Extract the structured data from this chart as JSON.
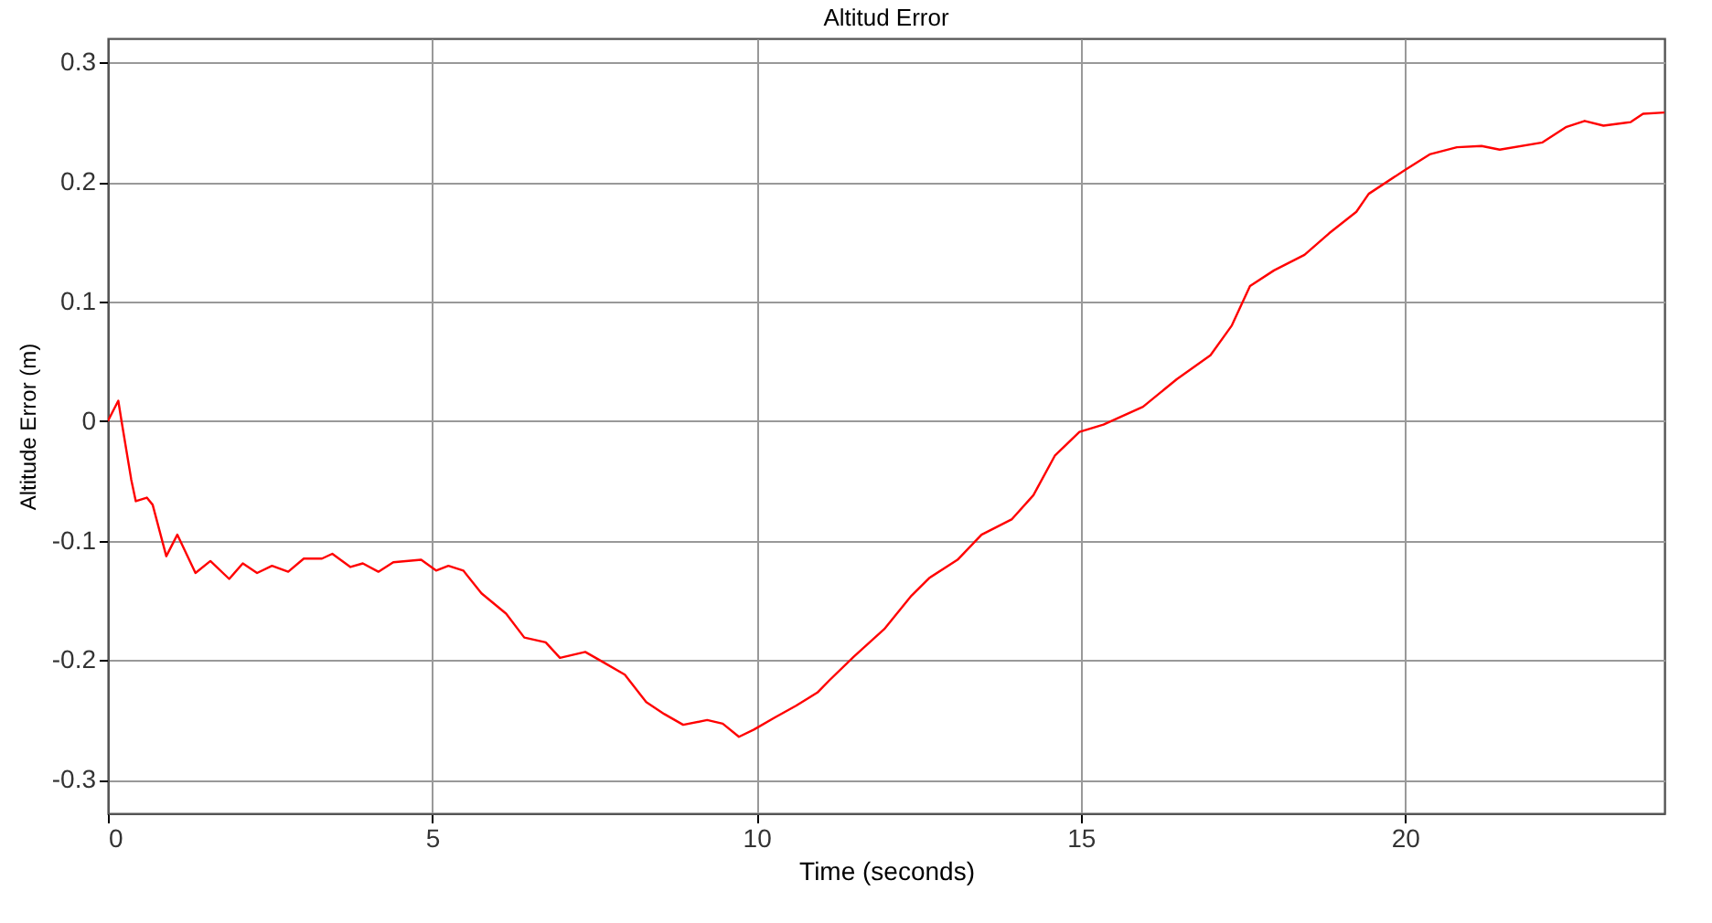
{
  "chart_data": {
    "type": "line",
    "title": "Altitud Error",
    "xlabel": "Time (seconds)",
    "ylabel": "Altitude Error (m)",
    "xlim": [
      0,
      24
    ],
    "ylim": [
      -0.328,
      0.32
    ],
    "xticks": [
      0,
      5,
      10,
      15,
      20
    ],
    "yticks": [
      -0.3,
      -0.2,
      -0.1,
      0,
      0.1,
      0.2,
      0.3
    ],
    "grid": true,
    "x": [
      0,
      0.16,
      0.21,
      0.36,
      0.43,
      0.6,
      0.69,
      0.9,
      1.07,
      1.35,
      1.58,
      1.87,
      2.08,
      2.3,
      2.53,
      2.78,
      3.02,
      3.3,
      3.46,
      3.74,
      3.93,
      4.17,
      4.4,
      4.83,
      5.06,
      5.25,
      5.48,
      5.76,
      6.14,
      6.42,
      6.75,
      6.97,
      7.36,
      7.65,
      7.97,
      8.3,
      8.58,
      8.87,
      9.24,
      9.48,
      9.73,
      9.96,
      10.28,
      10.61,
      10.94,
      11.12,
      11.5,
      11.97,
      12.39,
      12.67,
      13.1,
      13.47,
      13.94,
      14.27,
      14.6,
      14.98,
      15.35,
      15.96,
      16.48,
      17.0,
      17.33,
      17.61,
      17.98,
      18.45,
      18.83,
      19.25,
      19.44,
      20.0,
      20.38,
      20.8,
      21.18,
      21.46,
      22.12,
      22.49,
      22.77,
      23.06,
      23.48,
      23.67,
      24.0
    ],
    "series": [
      {
        "color": "#ff0000",
        "values": [
          0,
          0.017,
          0,
          -0.049,
          -0.067,
          -0.064,
          -0.07,
          -0.113,
          -0.095,
          -0.127,
          -0.117,
          -0.132,
          -0.119,
          -0.127,
          -0.121,
          -0.126,
          -0.115,
          -0.115,
          -0.111,
          -0.122,
          -0.119,
          -0.126,
          -0.118,
          -0.116,
          -0.125,
          -0.121,
          -0.125,
          -0.144,
          -0.161,
          -0.181,
          -0.185,
          -0.198,
          -0.193,
          -0.202,
          -0.212,
          -0.235,
          -0.245,
          -0.254,
          -0.25,
          -0.253,
          -0.264,
          -0.258,
          -0.248,
          -0.238,
          -0.227,
          -0.217,
          -0.197,
          -0.174,
          -0.146,
          -0.131,
          -0.116,
          -0.095,
          -0.082,
          -0.062,
          -0.029,
          -0.009,
          -0.003,
          0.012,
          0.035,
          0.055,
          0.08,
          0.113,
          0.126,
          0.139,
          0.157,
          0.175,
          0.19,
          0.21,
          0.223,
          0.229,
          0.23,
          0.227,
          0.233,
          0.246,
          0.251,
          0.247,
          0.25,
          0.257,
          0.258
        ]
      }
    ]
  }
}
